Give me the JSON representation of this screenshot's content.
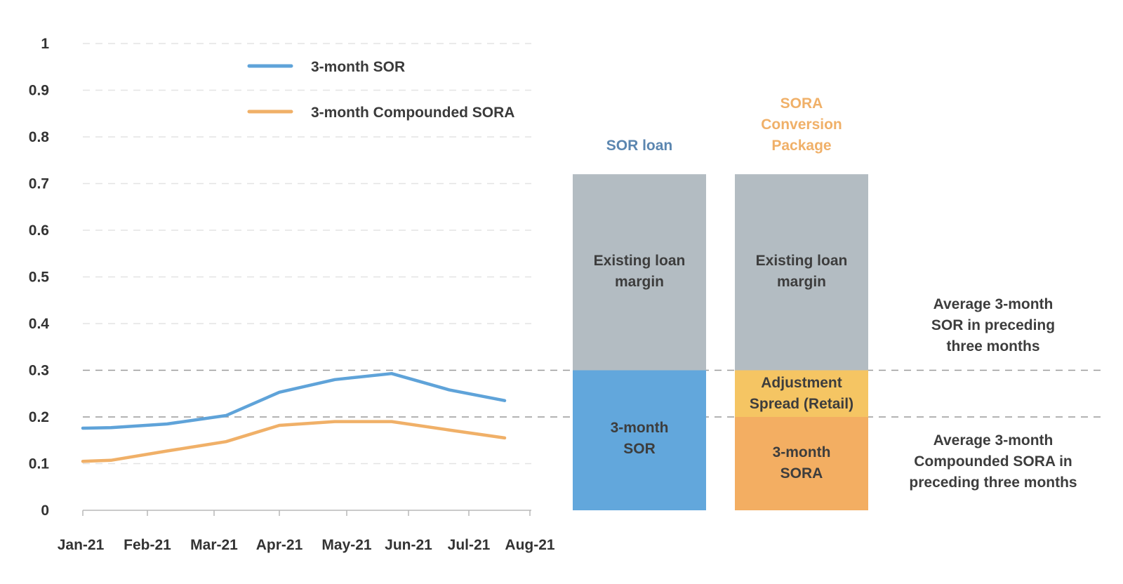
{
  "chart_data": {
    "type": "line",
    "x": [
      "Jan-21",
      "Feb-21",
      "Mar-21",
      "Apr-21",
      "May-21",
      "Jun-21",
      "Jul-21",
      "Aug-21"
    ],
    "y_ticks": [
      "0",
      "0.1",
      "0.2",
      "0.3",
      "0.4",
      "0.5",
      "0.6",
      "0.7",
      "0.8",
      "0.9",
      "1"
    ],
    "ylim": [
      0,
      1
    ],
    "grid": true,
    "legend_position": "top",
    "series": [
      {
        "name": "3-month SOR",
        "color": "#5fa3d9",
        "points": [
          [
            "Jan-21",
            0.176
          ],
          [
            "Jan-21 (mid)",
            0.177
          ],
          [
            "Feb-21 (mid)",
            0.185
          ],
          [
            "Mar-21",
            0.203
          ],
          [
            "Apr-21",
            0.253
          ],
          [
            "May-21 (early)",
            0.28
          ],
          [
            "May-21 (late)",
            0.293
          ],
          [
            "Jul-21 (early)",
            0.258
          ],
          [
            "Aug-21 (early)",
            0.235
          ]
        ]
      },
      {
        "name": "3-month Compounded SORA",
        "color": "#f0b068",
        "points": [
          [
            "Jan-21",
            0.105
          ],
          [
            "Jan-21 (mid)",
            0.107
          ],
          [
            "Feb-21 (mid)",
            0.127
          ],
          [
            "Mar-21",
            0.147
          ],
          [
            "Apr-21",
            0.182
          ],
          [
            "May-21 (early)",
            0.19
          ],
          [
            "May-21 (late)",
            0.19
          ],
          [
            "Jul-21 (early)",
            0.172
          ],
          [
            "Aug-21 (early)",
            0.155
          ]
        ]
      }
    ],
    "reference_lines": [
      0.3,
      0.2
    ],
    "stacks": [
      {
        "title": "SOR loan",
        "title_color": "#5b86b0",
        "segments": [
          {
            "label": "3-month SOR",
            "from": 0,
            "to": 0.3,
            "color": "#62a7dc"
          },
          {
            "label": "Existing loan margin",
            "from": 0.3,
            "to": 0.72,
            "color": "#b3bcc2"
          }
        ]
      },
      {
        "title": "SORA Conversion Package",
        "title_color": "#f0b068",
        "segments": [
          {
            "label": "3-month SORA",
            "from": 0,
            "to": 0.2,
            "color": "#f3ae62"
          },
          {
            "label": "Adjustment Spread (Retail)",
            "from": 0.2,
            "to": 0.3,
            "color": "#f5c563"
          },
          {
            "label": "Existing loan margin",
            "from": 0.3,
            "to": 0.72,
            "color": "#b3bcc2"
          }
        ]
      }
    ],
    "annotations": [
      "Average 3-month SOR in preceding three months",
      "Average 3-month Compounded SORA in preceding three months"
    ]
  },
  "text": {
    "legend_sor": "3-month SOR",
    "legend_sora": "3-month Compounded SORA",
    "col1_title": "SOR loan",
    "col2_title_l1": "SORA",
    "col2_title_l2": "Conversion",
    "col2_title_l3": "Package",
    "col1_seg_top_l1": "Existing loan",
    "col1_seg_top_l2": "margin",
    "col1_seg_bot_l1": "3-month",
    "col1_seg_bot_l2": "SOR",
    "col2_seg_top_l1": "Existing loan",
    "col2_seg_top_l2": "margin",
    "col2_seg_mid_l1": "Adjustment",
    "col2_seg_mid_l2": "Spread (Retail)",
    "col2_seg_bot_l1": "3-month",
    "col2_seg_bot_l2": "SORA",
    "note_top_l1": "Average 3-month",
    "note_top_l2": "SOR in preceding",
    "note_top_l3": "three months",
    "note_bot_l1": "Average 3-month",
    "note_bot_l2": "Compounded SORA in",
    "note_bot_l3": "preceding three months"
  }
}
